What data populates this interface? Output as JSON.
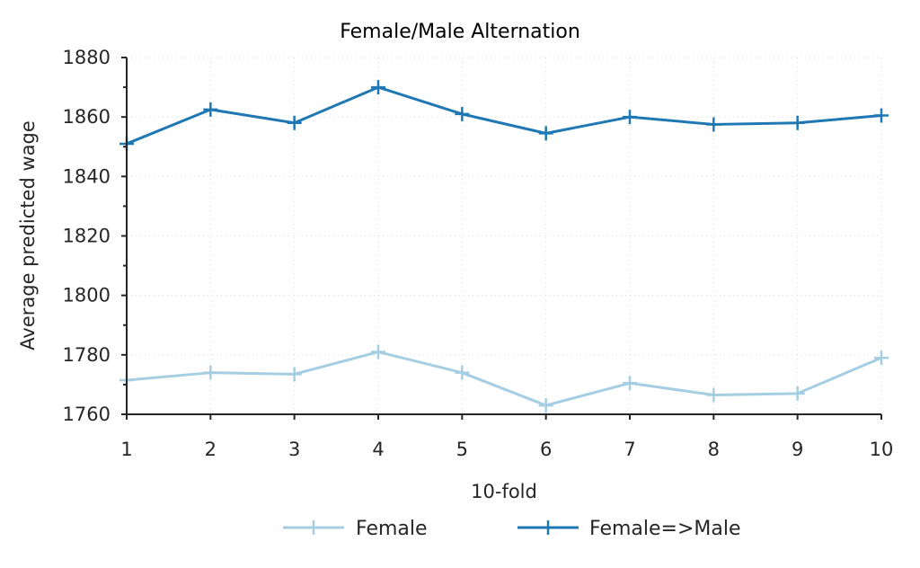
{
  "chart_data": {
    "type": "line",
    "title": "Female/Male Alternation",
    "xlabel": "10-fold",
    "ylabel": "Average predicted wage",
    "categories": [
      "1",
      "2",
      "3",
      "4",
      "5",
      "6",
      "7",
      "8",
      "9",
      "10"
    ],
    "x": [
      1,
      2,
      3,
      4,
      5,
      6,
      7,
      8,
      9,
      10
    ],
    "xlim": [
      1,
      10
    ],
    "ylim": [
      1760,
      1880
    ],
    "yticks": [
      1760,
      1780,
      1800,
      1820,
      1840,
      1860,
      1880
    ],
    "grid": true,
    "legend_position": "bottom",
    "series": [
      {
        "name": "Female",
        "color": "#a6cee3",
        "marker": "plus",
        "values": [
          1771.5,
          1774,
          1773.5,
          1781,
          1774,
          1763,
          1770.5,
          1766.5,
          1767,
          1779
        ]
      },
      {
        "name": "Female=>Male",
        "color": "#1f78b4",
        "marker": "plus",
        "values": [
          1851,
          1862.5,
          1858,
          1870,
          1861,
          1854.5,
          1860,
          1857.5,
          1858,
          1860.5
        ]
      }
    ]
  }
}
